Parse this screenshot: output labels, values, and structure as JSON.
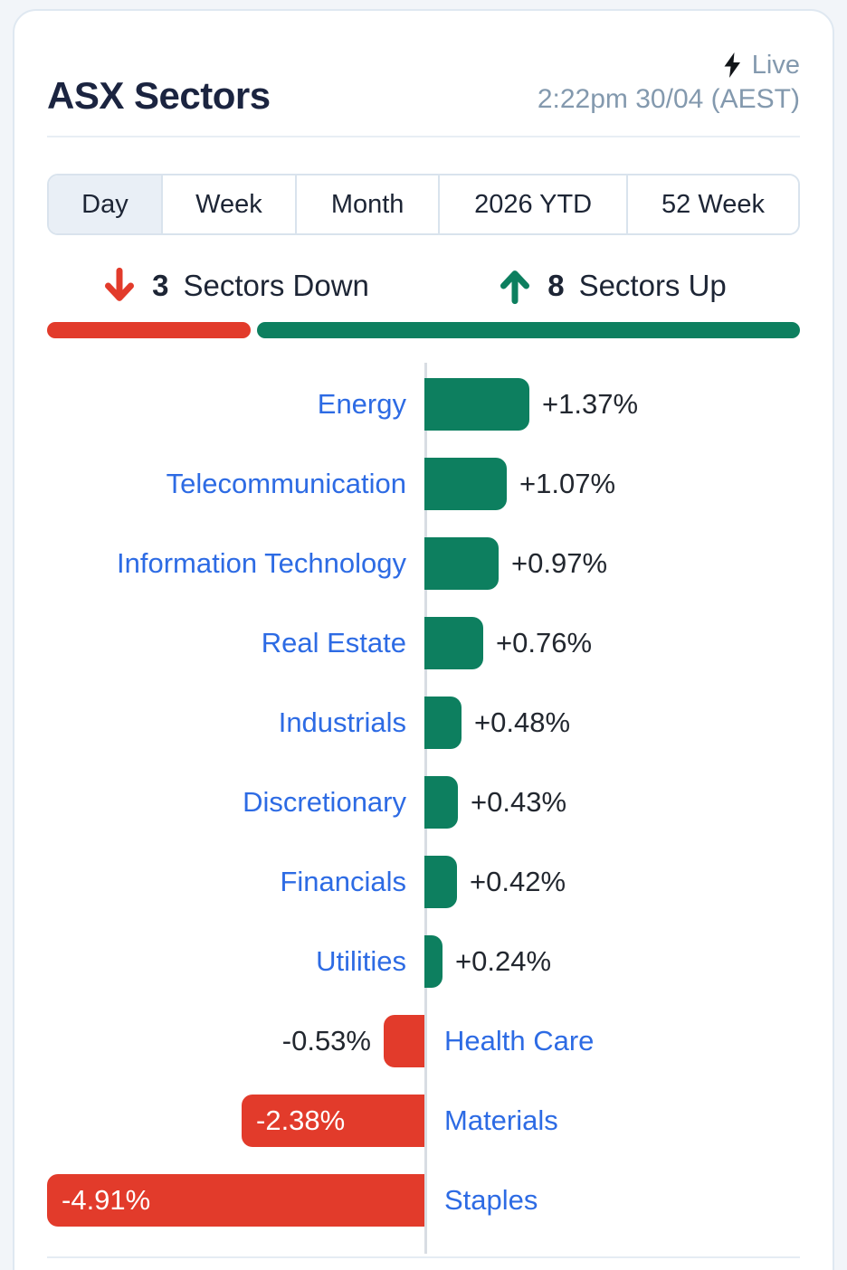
{
  "header": {
    "title": "ASX Sectors",
    "live_label": "Live",
    "timestamp": "2:22pm 30/04 (AEST)"
  },
  "tabs": [
    {
      "label": "Day",
      "selected": true
    },
    {
      "label": "Week",
      "selected": false
    },
    {
      "label": "Month",
      "selected": false
    },
    {
      "label": "2026 YTD",
      "selected": false
    },
    {
      "label": "52 Week",
      "selected": false
    }
  ],
  "summary": {
    "down_count": "3",
    "down_label": "Sectors Down",
    "up_count": "8",
    "up_label": "Sectors Up"
  },
  "colors": {
    "up_green": "#0d7f5f",
    "down_red": "#e23b2b",
    "label_blue": "#2d6be4",
    "title_navy": "#1b2440",
    "muted_bluegray": "#8399ae"
  },
  "icons": {
    "live": "lightning-bolt-icon",
    "down": "arrow-down-icon",
    "up": "arrow-up-icon"
  },
  "chart_data": {
    "type": "bar",
    "orientation": "horizontal",
    "title": "ASX Sectors - Day change",
    "unit": "% change",
    "xlim": [
      -4.91,
      4.91
    ],
    "grid": false,
    "legend": "none",
    "categories": [
      "Energy",
      "Telecommunication",
      "Information Technology",
      "Real Estate",
      "Industrials",
      "Discretionary",
      "Financials",
      "Utilities",
      "Health Care",
      "Materials",
      "Staples"
    ],
    "values": [
      1.37,
      1.07,
      0.97,
      0.76,
      0.48,
      0.43,
      0.42,
      0.24,
      -0.53,
      -2.38,
      -4.91
    ],
    "value_labels": [
      "+1.37%",
      "+1.07%",
      "+0.97%",
      "+0.76%",
      "+0.48%",
      "+0.43%",
      "+0.42%",
      "+0.24%",
      "-0.53%",
      "-2.38%",
      "-4.91%"
    ]
  }
}
